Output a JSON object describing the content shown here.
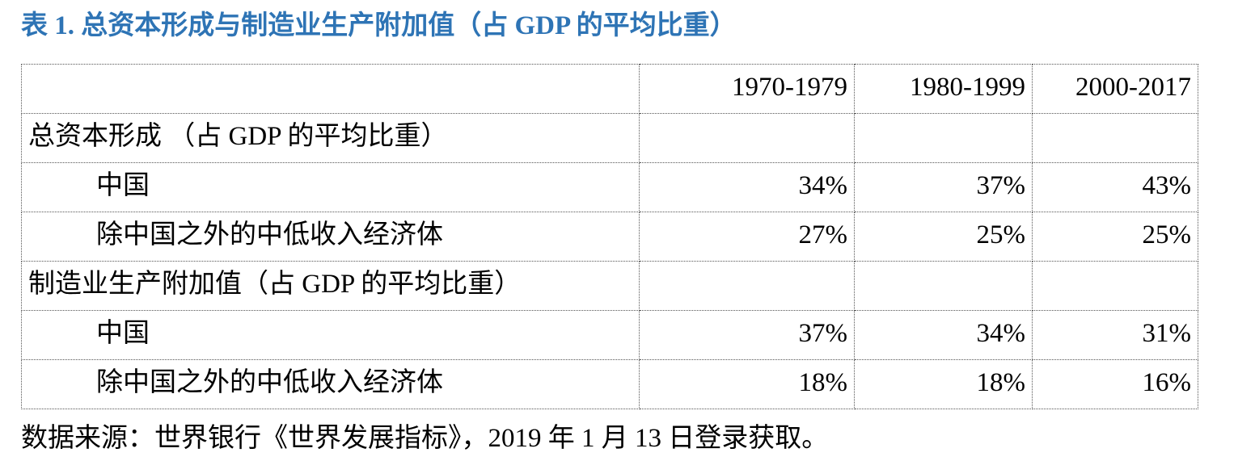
{
  "title": "表 1. 总资本形成与制造业生产附加值（占 GDP 的平均比重）",
  "table": {
    "columns": [
      "",
      "1970-1979",
      "1980-1999",
      "2000-2017"
    ],
    "rows": [
      {
        "label": "总资本形成 （占 GDP 的平均比重）",
        "values": [
          "",
          "",
          ""
        ]
      },
      {
        "label": "中国",
        "values": [
          "34%",
          "37%",
          "43%"
        ]
      },
      {
        "label": "除中国之外的中低收入经济体",
        "values": [
          "27%",
          "25%",
          "25%"
        ]
      },
      {
        "label": "制造业生产附加值（占 GDP 的平均比重）",
        "values": [
          "",
          "",
          ""
        ]
      },
      {
        "label": "中国",
        "values": [
          "37%",
          "34%",
          "31%"
        ]
      },
      {
        "label": "除中国之外的中低收入经济体",
        "values": [
          "18%",
          "18%",
          "16%"
        ]
      }
    ]
  },
  "source": "数据来源：世界银行《世界发展指标》，2019 年 1 月 13 日登录获取。",
  "colors": {
    "title": "#2e74b5",
    "text": "#000000",
    "border": "#555555"
  }
}
